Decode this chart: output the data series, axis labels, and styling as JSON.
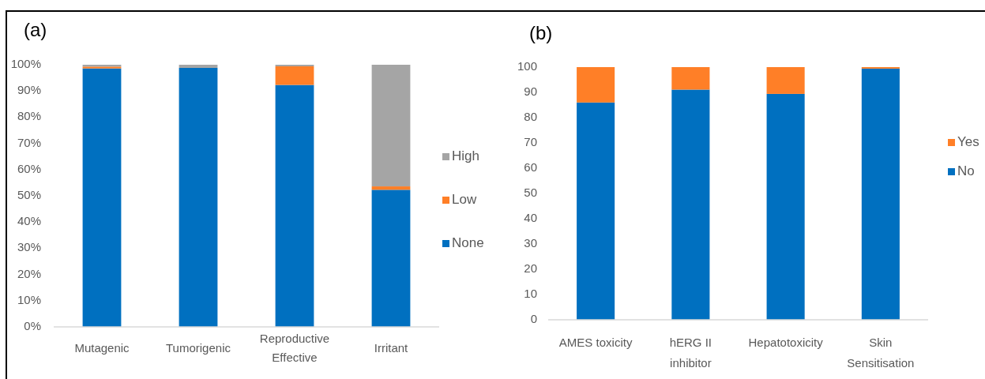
{
  "chart_data": [
    {
      "type": "bar",
      "title": "(a)",
      "stacked": true,
      "categories": [
        "Mutagenic",
        "Tumorigenic",
        "Reproductive Effective",
        "Irritant"
      ],
      "series": [
        {
          "name": "None",
          "color": "#0070c0",
          "values": [
            98.6,
            98.8,
            92.3,
            52.3
          ]
        },
        {
          "name": "Low",
          "color": "#ff7f27",
          "values": [
            0.7,
            0,
            7.1,
            1.3
          ]
        },
        {
          "name": "High",
          "color": "#a5a5a5",
          "values": [
            0.7,
            1.2,
            0.6,
            46.4
          ]
        }
      ],
      "ylim": [
        0,
        100
      ],
      "yticks": [
        {
          "value": 0,
          "label": "0%"
        },
        {
          "value": 10,
          "label": "10%"
        },
        {
          "value": 20,
          "label": "20%"
        },
        {
          "value": 30,
          "label": "30%"
        },
        {
          "value": 40,
          "label": "40%"
        },
        {
          "value": 50,
          "label": "50%"
        },
        {
          "value": 60,
          "label": "60%"
        },
        {
          "value": 70,
          "label": "70%"
        },
        {
          "value": 80,
          "label": "80%"
        },
        {
          "value": 90,
          "label": "90%"
        },
        {
          "value": 100,
          "label": "100%"
        }
      ],
      "legend": "right"
    },
    {
      "type": "bar",
      "title": "(b)",
      "stacked": true,
      "categories": [
        "AMES toxicity",
        "hERG II inhibitor",
        "Hepatotoxicity",
        "Skin Sensitisation"
      ],
      "series": [
        {
          "name": "No",
          "color": "#0070c0",
          "values": [
            86.0,
            91.1,
            89.4,
            99.4
          ]
        },
        {
          "name": "Yes",
          "color": "#ff7f27",
          "values": [
            14.0,
            8.9,
            10.6,
            0.6
          ]
        }
      ],
      "ylim": [
        0,
        100
      ],
      "yticks": [
        0,
        10,
        20,
        30,
        40,
        50,
        60,
        70,
        80,
        90,
        100
      ],
      "legend": "right"
    }
  ]
}
